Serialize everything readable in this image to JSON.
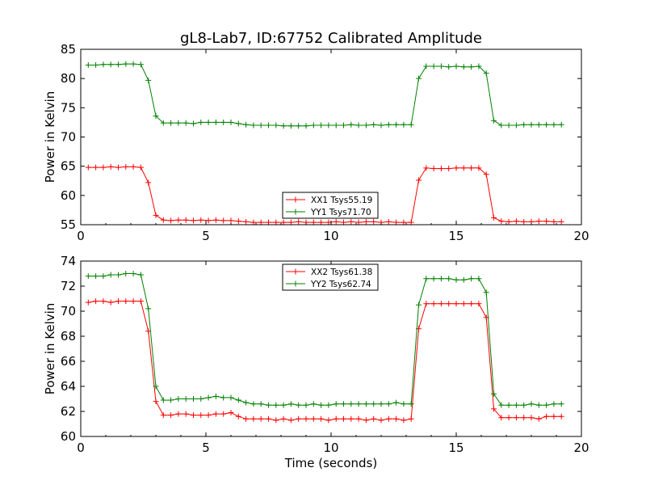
{
  "figure": {
    "title": "gL8-Lab7, ID:67752 Calibrated Amplitude",
    "xlabel": "Time (seconds)"
  },
  "colors": {
    "red": "#ff0000",
    "green": "#008000"
  },
  "chart_data": [
    {
      "type": "line",
      "title": "gL8-Lab7, ID:67752 Calibrated Amplitude",
      "xlabel": "",
      "ylabel": "Power in Kelvin",
      "xlim": [
        0,
        20
      ],
      "ylim": [
        55,
        85
      ],
      "xticks": [
        0,
        5,
        10,
        15,
        20
      ],
      "yticks": [
        55,
        60,
        65,
        70,
        75,
        80,
        85
      ],
      "grid": false,
      "legend_position": "lower-center",
      "x": [
        0.3,
        0.6,
        0.9,
        1.2,
        1.5,
        1.8,
        2.1,
        2.4,
        2.7,
        3.0,
        3.3,
        3.6,
        3.9,
        4.2,
        4.5,
        4.8,
        5.1,
        5.4,
        5.7,
        6.0,
        6.3,
        6.6,
        6.9,
        7.2,
        7.5,
        7.8,
        8.1,
        8.4,
        8.7,
        9.0,
        9.3,
        9.6,
        9.9,
        10.2,
        10.5,
        10.8,
        11.1,
        11.4,
        11.7,
        12.0,
        12.3,
        12.6,
        12.9,
        13.2,
        13.5,
        13.8,
        14.1,
        14.4,
        14.7,
        15.0,
        15.3,
        15.6,
        15.9,
        16.2,
        16.5,
        16.8,
        17.1,
        17.4,
        17.7,
        18.0,
        18.3,
        18.6,
        18.9,
        19.2
      ],
      "series": [
        {
          "name": "XX1 Tsys55.19",
          "color": "#ff0000",
          "values": [
            64.8,
            64.8,
            64.8,
            64.9,
            64.8,
            64.9,
            64.9,
            64.8,
            62.2,
            56.6,
            55.8,
            55.7,
            55.8,
            55.8,
            55.7,
            55.8,
            55.7,
            55.8,
            55.7,
            55.7,
            55.6,
            55.5,
            55.4,
            55.4,
            55.4,
            55.4,
            55.4,
            55.4,
            55.5,
            55.4,
            55.4,
            55.4,
            55.4,
            55.5,
            55.4,
            55.5,
            55.4,
            55.5,
            55.5,
            55.4,
            55.5,
            55.4,
            55.4,
            55.4,
            62.6,
            64.7,
            64.6,
            64.6,
            64.6,
            64.7,
            64.7,
            64.7,
            64.7,
            63.6,
            56.2,
            55.6,
            55.5,
            55.6,
            55.5,
            55.5,
            55.6,
            55.6,
            55.5,
            55.5
          ]
        },
        {
          "name": "YY1 Tsys71.70",
          "color": "#008000",
          "values": [
            82.3,
            82.3,
            82.4,
            82.4,
            82.4,
            82.5,
            82.5,
            82.4,
            79.7,
            73.6,
            72.4,
            72.4,
            72.4,
            72.4,
            72.3,
            72.5,
            72.5,
            72.5,
            72.5,
            72.5,
            72.3,
            72.1,
            72.0,
            72.0,
            72.0,
            72.0,
            71.9,
            71.9,
            71.9,
            71.9,
            72.0,
            72.0,
            72.0,
            72.0,
            72.0,
            72.1,
            72.0,
            72.0,
            72.1,
            72.0,
            72.1,
            72.1,
            72.1,
            72.1,
            80.0,
            82.1,
            82.1,
            82.1,
            82.0,
            82.1,
            82.0,
            82.0,
            82.1,
            80.9,
            72.8,
            72.0,
            72.0,
            72.0,
            72.1,
            72.1,
            72.1,
            72.1,
            72.1,
            72.1
          ]
        }
      ]
    },
    {
      "type": "line",
      "title": "",
      "xlabel": "Time (seconds)",
      "ylabel": "Power in Kelvin",
      "xlim": [
        0,
        20
      ],
      "ylim": [
        60,
        74
      ],
      "xticks": [
        0,
        5,
        10,
        15,
        20
      ],
      "yticks": [
        60,
        62,
        64,
        66,
        68,
        70,
        72,
        74
      ],
      "grid": false,
      "legend_position": "upper-center",
      "x": [
        0.3,
        0.6,
        0.9,
        1.2,
        1.5,
        1.8,
        2.1,
        2.4,
        2.7,
        3.0,
        3.3,
        3.6,
        3.9,
        4.2,
        4.5,
        4.8,
        5.1,
        5.4,
        5.7,
        6.0,
        6.3,
        6.6,
        6.9,
        7.2,
        7.5,
        7.8,
        8.1,
        8.4,
        8.7,
        9.0,
        9.3,
        9.6,
        9.9,
        10.2,
        10.5,
        10.8,
        11.1,
        11.4,
        11.7,
        12.0,
        12.3,
        12.6,
        12.9,
        13.2,
        13.5,
        13.8,
        14.1,
        14.4,
        14.7,
        15.0,
        15.3,
        15.6,
        15.9,
        16.2,
        16.5,
        16.8,
        17.1,
        17.4,
        17.7,
        18.0,
        18.3,
        18.6,
        18.9,
        19.2
      ],
      "series": [
        {
          "name": "XX2 Tsys61.38",
          "color": "#ff0000",
          "values": [
            70.7,
            70.8,
            70.8,
            70.7,
            70.8,
            70.8,
            70.8,
            70.8,
            68.4,
            62.8,
            61.7,
            61.7,
            61.8,
            61.8,
            61.7,
            61.7,
            61.7,
            61.8,
            61.8,
            61.9,
            61.6,
            61.4,
            61.4,
            61.4,
            61.4,
            61.3,
            61.4,
            61.3,
            61.4,
            61.4,
            61.4,
            61.4,
            61.3,
            61.4,
            61.4,
            61.4,
            61.4,
            61.3,
            61.4,
            61.3,
            61.4,
            61.4,
            61.3,
            61.4,
            68.6,
            70.6,
            70.6,
            70.6,
            70.6,
            70.6,
            70.6,
            70.6,
            70.6,
            69.5,
            62.2,
            61.5,
            61.5,
            61.5,
            61.5,
            61.5,
            61.4,
            61.6,
            61.6,
            61.6
          ]
        },
        {
          "name": "YY2 Tsys62.74",
          "color": "#008000",
          "values": [
            72.8,
            72.8,
            72.8,
            72.9,
            72.9,
            73.0,
            73.0,
            72.9,
            70.2,
            64.0,
            62.9,
            62.9,
            63.0,
            63.0,
            63.0,
            63.0,
            63.1,
            63.2,
            63.1,
            63.1,
            62.9,
            62.7,
            62.6,
            62.6,
            62.5,
            62.5,
            62.5,
            62.6,
            62.5,
            62.5,
            62.6,
            62.5,
            62.5,
            62.6,
            62.6,
            62.6,
            62.6,
            62.6,
            62.6,
            62.6,
            62.6,
            62.7,
            62.6,
            62.6,
            70.5,
            72.6,
            72.6,
            72.6,
            72.6,
            72.5,
            72.5,
            72.6,
            72.6,
            71.5,
            63.4,
            62.5,
            62.5,
            62.5,
            62.5,
            62.6,
            62.5,
            62.5,
            62.6,
            62.6
          ]
        }
      ]
    }
  ]
}
